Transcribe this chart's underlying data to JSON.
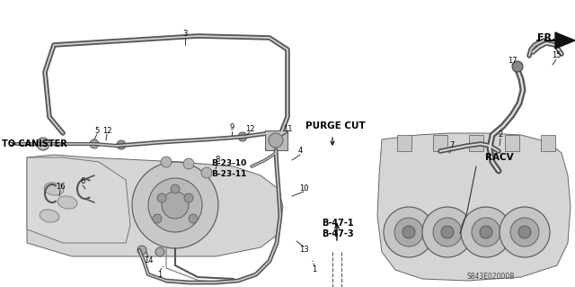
{
  "background_color": "#ffffff",
  "fig_width": 6.4,
  "fig_height": 3.19,
  "labels": {
    "to_canister": "TO CANISTER",
    "purge_cut": "PURGE CUT",
    "racv": "RACV",
    "fr": "FR.",
    "b2310": "B-23-10",
    "b2311": "B-23-11",
    "b471": "B-47-1",
    "b473": "B-47-3",
    "part_code": "S843E02000B"
  },
  "gray_light": "#d8d8d8",
  "gray_mid": "#aaaaaa",
  "gray_dark": "#666666",
  "black": "#111111",
  "white": "#ffffff"
}
